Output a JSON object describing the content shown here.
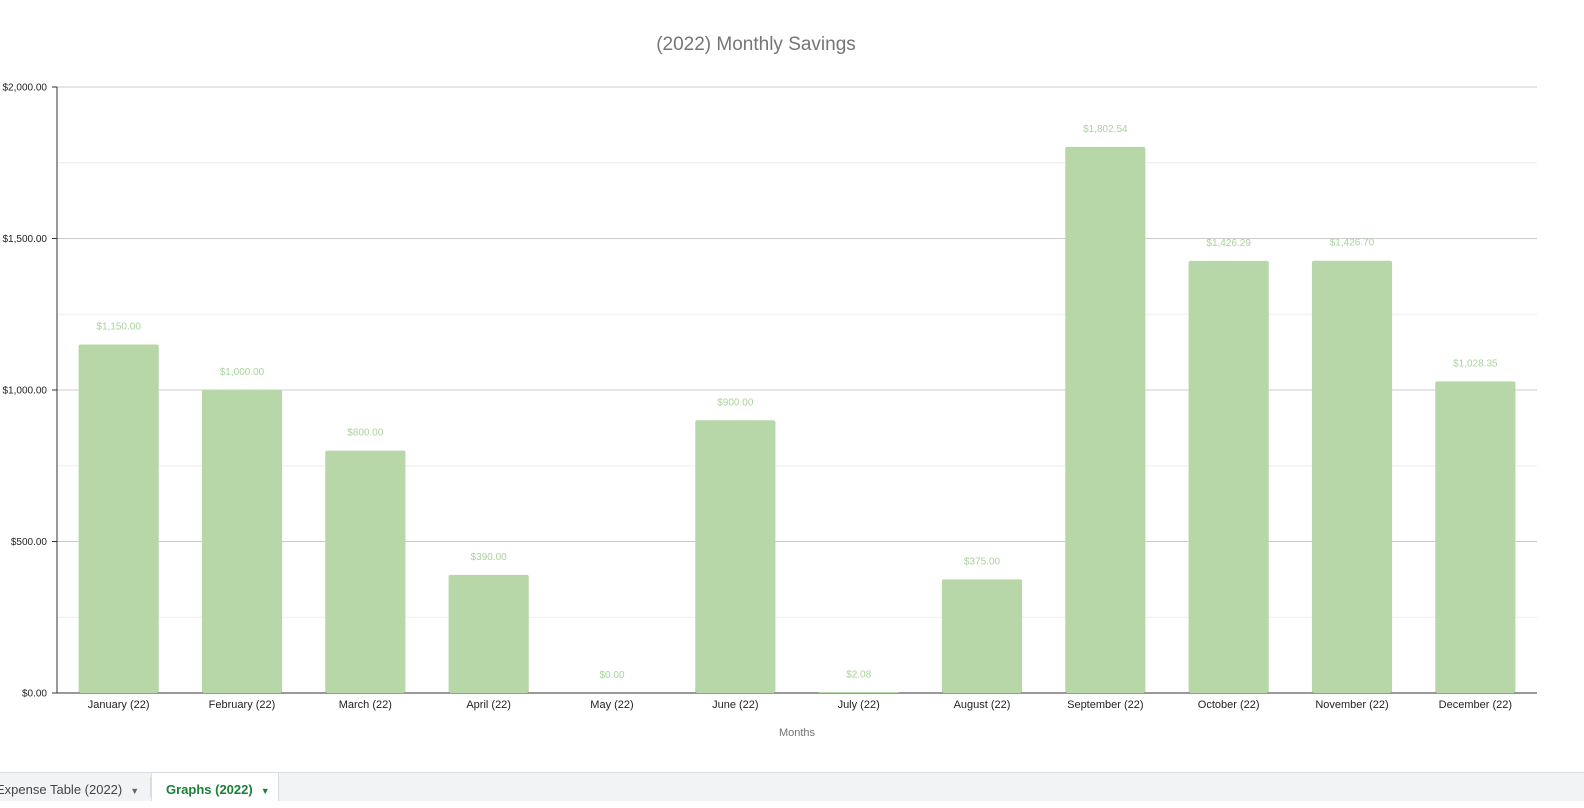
{
  "chart_data": {
    "type": "bar",
    "title": "(2022) Monthly Savings",
    "xlabel": "Months",
    "ylabel": "",
    "categories": [
      "January (22)",
      "February (22)",
      "March (22)",
      "April (22)",
      "May (22)",
      "June (22)",
      "July (22)",
      "August (22)",
      "September (22)",
      "October (22)",
      "November (22)",
      "December (22)"
    ],
    "values": [
      1150.0,
      1000.0,
      800.0,
      390.0,
      0.0,
      900.0,
      2.08,
      375.0,
      1802.54,
      1426.29,
      1426.7,
      1028.35
    ],
    "data_labels": [
      "$1,150.00",
      "$1,000.00",
      "$800.00",
      "$390.00",
      "$0.00",
      "$900.00",
      "$2.08",
      "$375.00",
      "$1,802.54",
      "$1,426.29",
      "$1,426.70",
      "$1,028.35"
    ],
    "ylim": [
      0,
      2000
    ],
    "yticks": [
      0,
      500,
      1000,
      1500,
      2000
    ],
    "ytick_labels": [
      "$0.00",
      "$500.00",
      "$1,000.00",
      "$1,500.00",
      "$2,000.00"
    ],
    "minor_gridlines": true,
    "grid": true,
    "legend": "none",
    "bar_color": "#b7d7a8",
    "label_color": "#a8d39b"
  },
  "sheet_tabs": [
    {
      "label": "Expense Table (2022)",
      "active": false
    },
    {
      "label": "Graphs (2022)",
      "active": true
    }
  ],
  "colors": {
    "active_tab": "#188038"
  }
}
